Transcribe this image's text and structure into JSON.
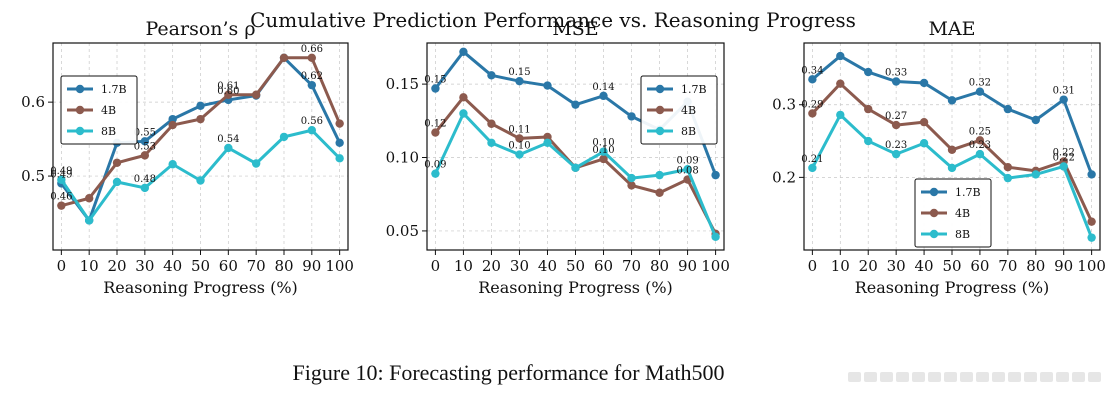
{
  "figure": {
    "suptitle": "Cumulative Prediction Performance vs. Reasoning Progress",
    "caption": "Figure 10: Forecasting performance for Math500",
    "colors": {
      "1.7B": "#2a77a7",
      "4B": "#8c5a4e",
      "8B": "#2cbccc"
    }
  },
  "chart_data": [
    {
      "type": "line",
      "title": "Pearson’s ρ",
      "xlabel": "Reasoning Progress (%)",
      "ylabel": "",
      "x": [
        0,
        10,
        20,
        30,
        40,
        50,
        60,
        70,
        80,
        90,
        100
      ],
      "xlim": [
        -3,
        103
      ],
      "ylim": [
        0.4,
        0.68
      ],
      "yticks": [
        0.5,
        0.6
      ],
      "ytick_labels": [
        "0.5",
        "0.6"
      ],
      "legend_position": "top-left",
      "series": [
        {
          "name": "1.7B",
          "values": [
            0.49,
            0.44,
            0.545,
            0.547,
            0.577,
            0.595,
            0.603,
            0.609,
            0.66,
            0.623,
            0.545
          ]
        },
        {
          "name": "4B",
          "values": [
            0.46,
            0.47,
            0.518,
            0.528,
            0.569,
            0.577,
            0.61,
            0.61,
            0.66,
            0.66,
            0.571
          ]
        },
        {
          "name": "8B",
          "values": [
            0.495,
            0.44,
            0.492,
            0.484,
            0.516,
            0.494,
            0.538,
            0.517,
            0.553,
            0.562,
            0.524
          ]
        }
      ],
      "annotations": [
        {
          "text": "0.49",
          "x": 0,
          "y": 0.49,
          "series": "1.7B"
        },
        {
          "text": "0.55",
          "x": 30,
          "y": 0.547,
          "series": "1.7B"
        },
        {
          "text": "0.60",
          "x": 60,
          "y": 0.603,
          "series": "1.7B"
        },
        {
          "text": "0.62",
          "x": 90,
          "y": 0.623,
          "series": "1.7B"
        },
        {
          "text": "0.46",
          "x": 0,
          "y": 0.46,
          "series": "4B"
        },
        {
          "text": "0.53",
          "x": 30,
          "y": 0.528,
          "series": "4B"
        },
        {
          "text": "0.61",
          "x": 60,
          "y": 0.61,
          "series": "4B"
        },
        {
          "text": "0.66",
          "x": 90,
          "y": 0.66,
          "series": "4B"
        },
        {
          "text": "0.49",
          "x": 0,
          "y": 0.495,
          "series": "8B"
        },
        {
          "text": "0.48",
          "x": 30,
          "y": 0.484,
          "series": "8B"
        },
        {
          "text": "0.54",
          "x": 60,
          "y": 0.538,
          "series": "8B"
        },
        {
          "text": "0.56",
          "x": 90,
          "y": 0.562,
          "series": "8B"
        }
      ]
    },
    {
      "type": "line",
      "title": "MSE",
      "xlabel": "Reasoning Progress (%)",
      "ylabel": "",
      "x": [
        0,
        10,
        20,
        30,
        40,
        50,
        60,
        70,
        80,
        90,
        100
      ],
      "xlim": [
        -3,
        103
      ],
      "ylim": [
        0.037,
        0.178
      ],
      "yticks": [
        0.05,
        0.1,
        0.15
      ],
      "ytick_labels": [
        "0.05",
        "0.10",
        "0.15"
      ],
      "legend_position": "top-right",
      "series": [
        {
          "name": "1.7B",
          "values": [
            0.147,
            0.172,
            0.156,
            0.152,
            0.149,
            0.136,
            0.142,
            0.128,
            0.119,
            0.138,
            0.088
          ]
        },
        {
          "name": "4B",
          "values": [
            0.117,
            0.141,
            0.123,
            0.113,
            0.114,
            0.093,
            0.099,
            0.081,
            0.076,
            0.085,
            0.048
          ]
        },
        {
          "name": "8B",
          "values": [
            0.089,
            0.13,
            0.11,
            0.102,
            0.11,
            0.093,
            0.104,
            0.086,
            0.088,
            0.092,
            0.046
          ]
        }
      ],
      "annotations": [
        {
          "text": "0.15",
          "x": 0,
          "y": 0.147,
          "series": "1.7B"
        },
        {
          "text": "0.15",
          "x": 30,
          "y": 0.152,
          "series": "1.7B"
        },
        {
          "text": "0.14",
          "x": 60,
          "y": 0.142,
          "series": "1.7B"
        },
        {
          "text": "0.12",
          "x": 0,
          "y": 0.117,
          "series": "4B"
        },
        {
          "text": "0.11",
          "x": 30,
          "y": 0.113,
          "series": "4B"
        },
        {
          "text": "0.10",
          "x": 60,
          "y": 0.099,
          "series": "4B"
        },
        {
          "text": "0.08",
          "x": 90,
          "y": 0.085,
          "series": "4B"
        },
        {
          "text": "0.09",
          "x": 0,
          "y": 0.089,
          "series": "8B"
        },
        {
          "text": "0.10",
          "x": 30,
          "y": 0.102,
          "series": "8B"
        },
        {
          "text": "0.10",
          "x": 60,
          "y": 0.104,
          "series": "8B"
        },
        {
          "text": "0.09",
          "x": 90,
          "y": 0.092,
          "series": "8B"
        }
      ]
    },
    {
      "type": "line",
      "title": "MAE",
      "xlabel": "Reasoning Progress (%)",
      "ylabel": "",
      "x": [
        0,
        10,
        20,
        30,
        40,
        50,
        60,
        70,
        80,
        90,
        100
      ],
      "xlim": [
        -3,
        103
      ],
      "ylim": [
        0.1,
        0.385
      ],
      "yticks": [
        0.2,
        0.3
      ],
      "ytick_labels": [
        "0.2",
        "0.3"
      ],
      "legend_position": "lower-right",
      "series": [
        {
          "name": "1.7B",
          "values": [
            0.335,
            0.367,
            0.345,
            0.332,
            0.33,
            0.306,
            0.318,
            0.294,
            0.279,
            0.307,
            0.204
          ]
        },
        {
          "name": "4B",
          "values": [
            0.288,
            0.329,
            0.294,
            0.272,
            0.276,
            0.238,
            0.251,
            0.214,
            0.209,
            0.222,
            0.139
          ]
        },
        {
          "name": "8B",
          "values": [
            0.213,
            0.286,
            0.25,
            0.232,
            0.247,
            0.213,
            0.232,
            0.199,
            0.204,
            0.215,
            0.117
          ]
        }
      ],
      "annotations": [
        {
          "text": "0.34",
          "x": 0,
          "y": 0.335,
          "series": "1.7B"
        },
        {
          "text": "0.33",
          "x": 30,
          "y": 0.332,
          "series": "1.7B"
        },
        {
          "text": "0.32",
          "x": 60,
          "y": 0.318,
          "series": "1.7B"
        },
        {
          "text": "0.31",
          "x": 90,
          "y": 0.307,
          "series": "1.7B"
        },
        {
          "text": "0.29",
          "x": 0,
          "y": 0.288,
          "series": "4B"
        },
        {
          "text": "0.27",
          "x": 30,
          "y": 0.272,
          "series": "4B"
        },
        {
          "text": "0.25",
          "x": 60,
          "y": 0.251,
          "series": "4B"
        },
        {
          "text": "0.22",
          "x": 90,
          "y": 0.222,
          "series": "4B"
        },
        {
          "text": "0.21",
          "x": 0,
          "y": 0.213,
          "series": "8B"
        },
        {
          "text": "0.23",
          "x": 30,
          "y": 0.232,
          "series": "8B"
        },
        {
          "text": "0.23",
          "x": 60,
          "y": 0.232,
          "series": "8B"
        },
        {
          "text": "0.22",
          "x": 90,
          "y": 0.215,
          "series": "8B"
        }
      ]
    }
  ]
}
